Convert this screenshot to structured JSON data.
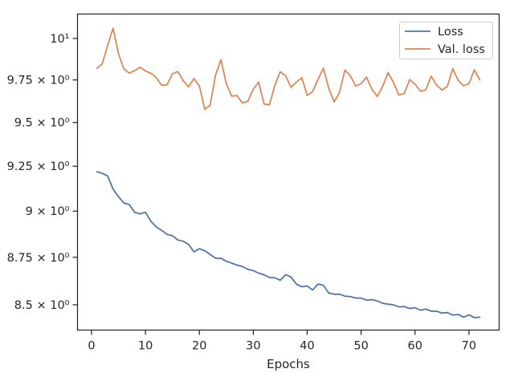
{
  "chart_data": {
    "type": "line",
    "title": "",
    "xlabel": "Epochs",
    "ylabel": "",
    "y_scale": "log",
    "xlim": [
      -2.6,
      75.6
    ],
    "ylim": [
      8.37,
      10.15
    ],
    "grid": false,
    "legend_position": "top-right",
    "x_ticks": [
      0,
      10,
      20,
      30,
      40,
      50,
      60,
      70
    ],
    "x_tick_labels": [
      "0",
      "10",
      "20",
      "30",
      "40",
      "50",
      "60",
      "70"
    ],
    "y_ticks": [
      8.5,
      8.75,
      9,
      9.25,
      9.5,
      9.75,
      10
    ],
    "y_tick_labels": [
      "8.5 × 10⁰",
      "8.75 × 10⁰",
      "9 × 10⁰",
      "9.25 × 10⁰",
      "9.5 × 10⁰",
      "9.75 × 10⁰",
      "10¹"
    ],
    "x": [
      1,
      2,
      3,
      4,
      5,
      6,
      7,
      8,
      9,
      10,
      11,
      12,
      13,
      14,
      15,
      16,
      17,
      18,
      19,
      20,
      21,
      22,
      23,
      24,
      25,
      26,
      27,
      28,
      29,
      30,
      31,
      32,
      33,
      34,
      35,
      36,
      37,
      38,
      39,
      40,
      41,
      42,
      43,
      44,
      45,
      46,
      47,
      48,
      49,
      50,
      51,
      52,
      53,
      54,
      55,
      56,
      57,
      58,
      59,
      60,
      61,
      62,
      63,
      64,
      65,
      66,
      67,
      68,
      69,
      70,
      71,
      72
    ],
    "series": [
      {
        "name": "Loss",
        "color": "#4c72b0",
        "values": [
          9.219,
          9.21,
          9.195,
          9.121,
          9.08,
          9.045,
          9.036,
          8.993,
          8.985,
          8.994,
          8.945,
          8.914,
          8.895,
          8.873,
          8.866,
          8.843,
          8.836,
          8.819,
          8.779,
          8.796,
          8.785,
          8.765,
          8.745,
          8.745,
          8.729,
          8.719,
          8.708,
          8.701,
          8.686,
          8.679,
          8.666,
          8.657,
          8.643,
          8.641,
          8.628,
          8.658,
          8.645,
          8.608,
          8.594,
          8.598,
          8.577,
          8.608,
          8.602,
          8.561,
          8.555,
          8.555,
          8.545,
          8.543,
          8.535,
          8.535,
          8.524,
          8.527,
          8.52,
          8.508,
          8.503,
          8.5,
          8.489,
          8.491,
          8.481,
          8.485,
          8.472,
          8.478,
          8.467,
          8.467,
          8.457,
          8.46,
          8.447,
          8.45,
          8.436,
          8.448,
          8.434,
          8.436
        ]
      },
      {
        "name": "Val. loss",
        "color": "#dd8452",
        "values": [
          9.819,
          9.847,
          9.959,
          10.062,
          9.907,
          9.816,
          9.791,
          9.805,
          9.826,
          9.803,
          9.79,
          9.764,
          9.719,
          9.721,
          9.786,
          9.8,
          9.746,
          9.709,
          9.758,
          9.715,
          9.577,
          9.6,
          9.779,
          9.871,
          9.727,
          9.654,
          9.657,
          9.614,
          9.624,
          9.695,
          9.737,
          9.608,
          9.603,
          9.718,
          9.799,
          9.775,
          9.707,
          9.737,
          9.763,
          9.658,
          9.681,
          9.752,
          9.821,
          9.7,
          9.62,
          9.676,
          9.81,
          9.775,
          9.713,
          9.728,
          9.767,
          9.695,
          9.652,
          9.712,
          9.794,
          9.735,
          9.661,
          9.669,
          9.752,
          9.725,
          9.683,
          9.691,
          9.772,
          9.719,
          9.69,
          9.712,
          9.817,
          9.748,
          9.715,
          9.728,
          9.81,
          9.751
        ]
      }
    ]
  }
}
